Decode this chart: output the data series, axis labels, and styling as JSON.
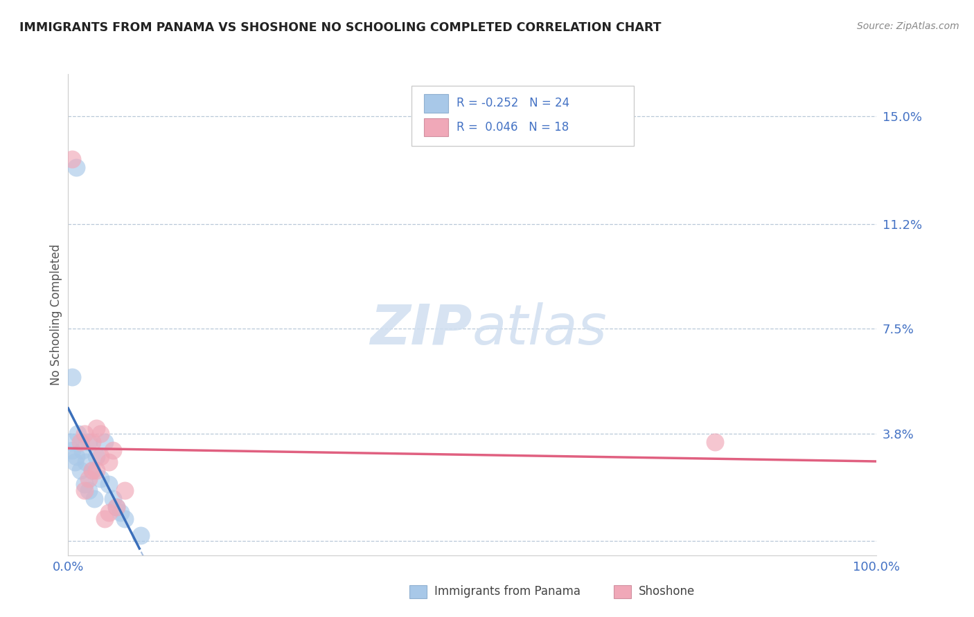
{
  "title": "IMMIGRANTS FROM PANAMA VS SHOSHONE NO SCHOOLING COMPLETED CORRELATION CHART",
  "source_text": "Source: ZipAtlas.com",
  "ylabel": "No Schooling Completed",
  "xlim": [
    0,
    100
  ],
  "ylim": [
    -0.5,
    16.5
  ],
  "ytick_vals": [
    0,
    3.8,
    7.5,
    11.2,
    15.0
  ],
  "ytick_labels": [
    "",
    "3.8%",
    "7.5%",
    "11.2%",
    "15.0%"
  ],
  "xtick_vals": [
    0,
    25,
    50,
    75,
    100
  ],
  "xtick_labels": [
    "0.0%",
    "",
    "",
    "",
    "100.0%"
  ],
  "color_blue": "#a8c8e8",
  "color_blue_line": "#3b6fba",
  "color_pink": "#f0a8b8",
  "color_pink_line": "#e06080",
  "color_text_blue": "#4472c4",
  "watermark_color": "#d0dff0",
  "background_color": "#ffffff",
  "grid_color": "#b8c8d8",
  "title_color": "#222222",
  "title_fontsize": 12.5,
  "tick_label_color": "#4472c4",
  "blue_x": [
    0.3,
    0.5,
    0.8,
    1.0,
    1.2,
    1.5,
    1.8,
    2.0,
    2.2,
    2.5,
    2.5,
    3.0,
    3.2,
    3.5,
    4.0,
    4.5,
    5.0,
    5.5,
    6.0,
    6.5,
    7.0,
    9.0,
    0.5,
    1.0
  ],
  "blue_y": [
    3.5,
    3.2,
    2.8,
    3.0,
    3.8,
    2.5,
    3.2,
    2.0,
    2.8,
    3.5,
    1.8,
    2.5,
    1.5,
    3.0,
    2.2,
    3.5,
    2.0,
    1.5,
    1.2,
    1.0,
    0.8,
    0.2,
    5.8,
    13.2
  ],
  "pink_x": [
    0.5,
    1.5,
    2.0,
    3.0,
    3.5,
    4.0,
    5.0,
    5.5,
    6.0,
    7.0,
    2.5,
    3.0,
    4.5,
    5.0,
    2.0,
    3.5,
    4.0,
    80.0
  ],
  "pink_y": [
    13.5,
    3.5,
    3.8,
    2.5,
    4.0,
    3.8,
    2.8,
    3.2,
    1.2,
    1.8,
    2.2,
    3.5,
    0.8,
    1.0,
    1.8,
    2.5,
    3.0,
    3.5
  ],
  "blue_line_x0": 0,
  "blue_line_y0": 3.5,
  "blue_line_x1": 15,
  "blue_line_y1": 0.0,
  "pink_line_x0": 0,
  "pink_line_y0": 3.2,
  "pink_line_x1": 100,
  "pink_line_y1": 3.6
}
